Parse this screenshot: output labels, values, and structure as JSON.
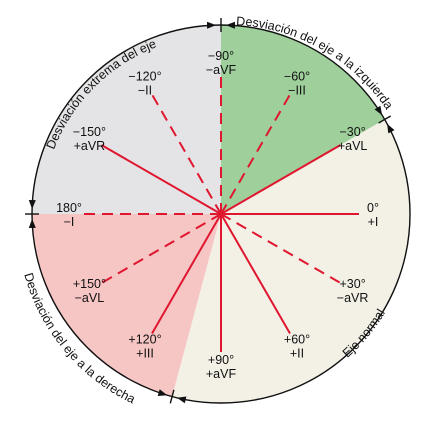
{
  "colors": {
    "extreme": "#e4e4e6",
    "left": "#9fd09b",
    "normal": "#f3f0e6",
    "right": "#f6c6c4",
    "lead_line": "#e0162f",
    "outline": "#111111"
  },
  "sectors": [
    {
      "name": "sector-extreme-deviation",
      "from_deg": -180,
      "to_deg": -90,
      "color_key": "extreme"
    },
    {
      "name": "sector-left-deviation",
      "from_deg": -90,
      "to_deg": -30,
      "color_key": "left"
    },
    {
      "name": "sector-normal-axis",
      "from_deg": -30,
      "to_deg": 105,
      "color_key": "normal"
    },
    {
      "name": "sector-right-deviation",
      "from_deg": 105,
      "to_deg": 180,
      "color_key": "right"
    }
  ],
  "leads": [
    {
      "angle_deg": 0,
      "style": "solid",
      "degree_label": "0°",
      "lead_label": "+I"
    },
    {
      "angle_deg": 30,
      "style": "dashed",
      "degree_label": "+30°",
      "lead_label": "−aVR"
    },
    {
      "angle_deg": 60,
      "style": "solid",
      "degree_label": "+60°",
      "lead_label": "+II"
    },
    {
      "angle_deg": 90,
      "style": "solid",
      "degree_label": "+90°",
      "lead_label": "+aVF"
    },
    {
      "angle_deg": 120,
      "style": "solid",
      "degree_label": "+120°",
      "lead_label": "+III"
    },
    {
      "angle_deg": 150,
      "style": "dashed",
      "degree_label": "+150°",
      "lead_label": "−aVL"
    },
    {
      "angle_deg": 180,
      "style": "dashed",
      "degree_label": "180°",
      "lead_label": "−I"
    },
    {
      "angle_deg": -150,
      "style": "solid",
      "degree_label": "−150°",
      "lead_label": "+aVR"
    },
    {
      "angle_deg": -120,
      "style": "dashed",
      "degree_label": "−120°",
      "lead_label": "−II"
    },
    {
      "angle_deg": -90,
      "style": "dashed",
      "degree_label": "−90°",
      "lead_label": "−aVF"
    },
    {
      "angle_deg": -60,
      "style": "dashed",
      "degree_label": "−60°",
      "lead_label": "−III"
    },
    {
      "angle_deg": -30,
      "style": "solid",
      "degree_label": "−30°",
      "lead_label": "+aVL"
    }
  ],
  "arc_labels": {
    "extreme": "Desviación extrema del eje",
    "left": "Desviación del eje a la izquierda",
    "right": "Desviación del eje a la derecha",
    "normal": "Eje normal"
  }
}
